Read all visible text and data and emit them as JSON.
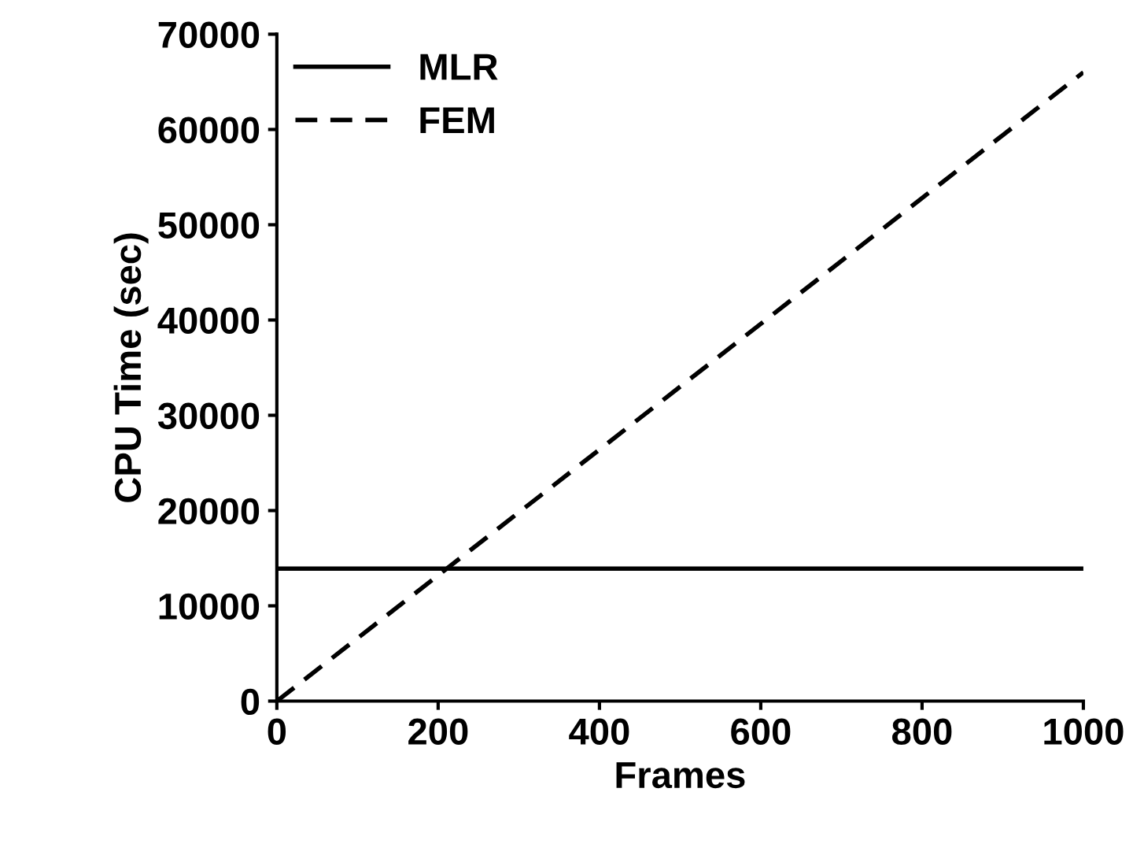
{
  "chart_data": {
    "type": "line",
    "xlabel": "Frames",
    "ylabel": "CPU Time (sec)",
    "x": [
      0,
      1000
    ],
    "series": [
      {
        "name": "MLR",
        "color": "#000000",
        "values": [
          13900,
          13900
        ],
        "line_style": "solid"
      },
      {
        "name": "FEM",
        "color": "#000000",
        "values": [
          0,
          66000
        ],
        "line_style": "dashed"
      }
    ],
    "xlim": [
      0,
      1000
    ],
    "ylim": [
      0,
      70000
    ],
    "xticks": [
      0,
      200,
      400,
      600,
      800,
      1000
    ],
    "yticks": [
      0,
      10000,
      20000,
      30000,
      40000,
      50000,
      60000,
      70000
    ],
    "grid": false,
    "legend": "top left",
    "marker": "none"
  }
}
